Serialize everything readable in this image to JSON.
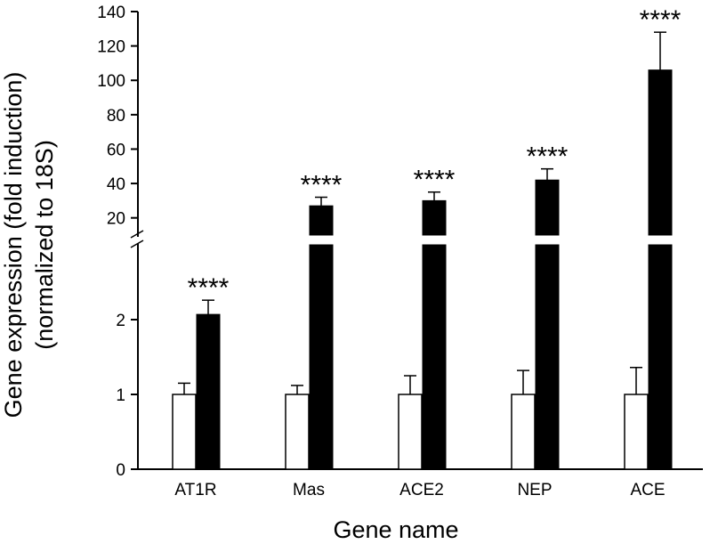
{
  "chart_data": {
    "type": "bar",
    "xlabel": "Gene name",
    "ylabel_line1": "Gene expression (fold induction)",
    "ylabel_line2": "(normalized to 18S)",
    "categories": [
      "AT1R",
      "Mas",
      "ACE2",
      "NEP",
      "ACE"
    ],
    "series": [
      {
        "values": [
          1,
          1,
          1,
          1,
          1
        ],
        "errors": [
          0.15,
          0.12,
          0.25,
          0.32,
          0.36
        ],
        "fill": "#ffffff"
      },
      {
        "values": [
          2.07,
          27,
          30,
          42,
          106
        ],
        "errors": [
          0.19,
          5,
          5,
          6.5,
          22
        ],
        "fill": "#000000"
      }
    ],
    "significance": [
      "****",
      "****",
      "****",
      "****",
      "****"
    ],
    "lower_axis": {
      "range": [
        0,
        3
      ],
      "ticks": [
        0,
        1,
        2
      ]
    },
    "upper_axis": {
      "range": [
        10,
        140
      ],
      "ticks": [
        20,
        40,
        60,
        80,
        100,
        120,
        140
      ]
    },
    "axis_break": true,
    "legend": "none",
    "grid": false
  }
}
